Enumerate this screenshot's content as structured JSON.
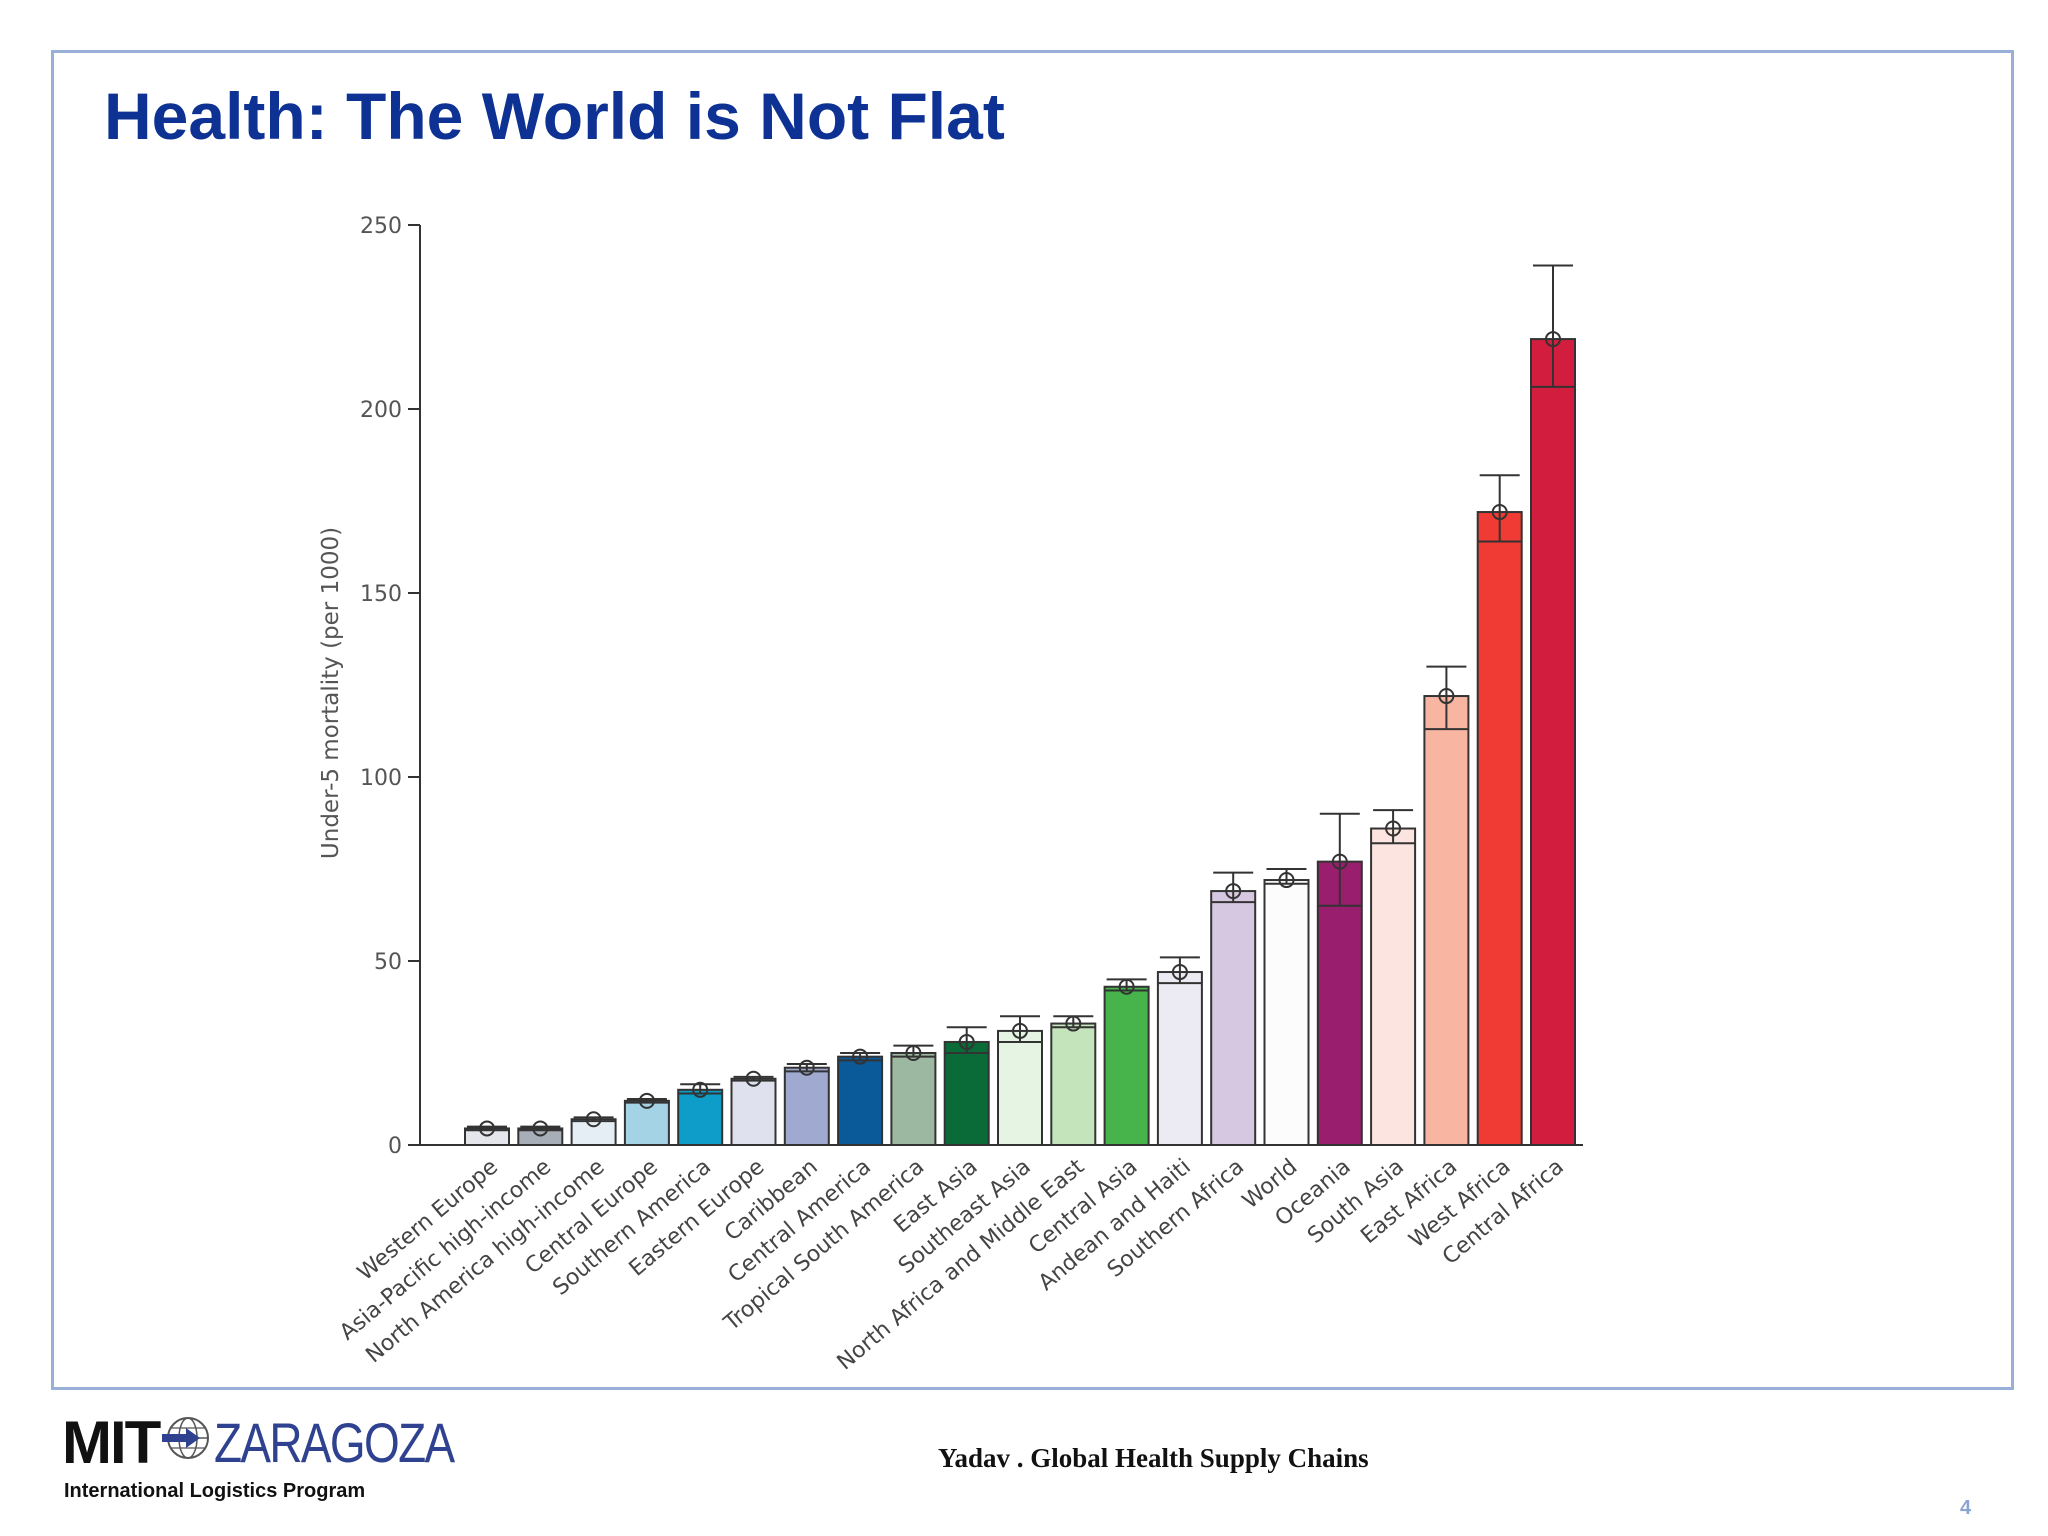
{
  "slide": {
    "title": "Health: The World is Not Flat",
    "footer": "Yadav . Global Health Supply Chains",
    "page_number": "4"
  },
  "logo": {
    "main_left": "MIT",
    "main_right": "ZARAGOZA",
    "subtitle": "International Logistics Program"
  },
  "chart_data": {
    "type": "bar",
    "ylabel": "Under-5 mortality (per 1000)",
    "ylim": [
      0,
      250
    ],
    "yticks": [
      0,
      50,
      100,
      150,
      200,
      250
    ],
    "error_bars": true,
    "categories": [
      "Western Europe",
      "Asia-Pacific high-income",
      "North America high-income",
      "Central Europe",
      "Southern America",
      "Eastern Europe",
      "Caribbean",
      "Central America",
      "Tropical South America",
      "East Asia",
      "Southeast Asia",
      "North Africa and Middle East",
      "Central Asia",
      "Andean and Haiti",
      "Southern Africa",
      "World",
      "Oceania",
      "South Asia",
      "East Africa",
      "West Africa",
      "Central Africa"
    ],
    "values": [
      4.5,
      4.5,
      7,
      12,
      15,
      18,
      21,
      24,
      25,
      28,
      31,
      33,
      43,
      47,
      69,
      72,
      77,
      86,
      122,
      172,
      219
    ],
    "lower": [
      4,
      4,
      6.5,
      11.5,
      14,
      17.5,
      20,
      23,
      24,
      25,
      28,
      32,
      42,
      44,
      66,
      71,
      65,
      82,
      113,
      164,
      206
    ],
    "upper": [
      5,
      5,
      7.5,
      12.5,
      16.5,
      18.5,
      22,
      25,
      27,
      32,
      35,
      35,
      45,
      51,
      74,
      75,
      90,
      91,
      130,
      182,
      239
    ],
    "colors": [
      "#e4e6ec",
      "#a8aeb8",
      "#e6eef5",
      "#a4d3e6",
      "#0d9dc8",
      "#dfe1ee",
      "#a0aad0",
      "#0a5a9a",
      "#9cb8a0",
      "#0a6a38",
      "#e6f4e4",
      "#c4e4bc",
      "#46b44a",
      "#ecebf3",
      "#d7c8e2",
      "#fcfcfd",
      "#9a1e6e",
      "#fce5e0",
      "#f8b5a2",
      "#ef3b33",
      "#d31d3e"
    ]
  }
}
